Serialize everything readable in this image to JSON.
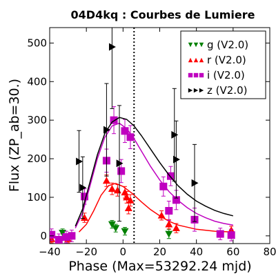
{
  "chart_data": {
    "type": "scatter",
    "title": "04D4kq : Courbes de Lumiere",
    "xlabel": "Phase (Max=53292.24 mjd)",
    "ylabel": "Flux (ZP_ab=30.)",
    "xlim": [
      -40,
      80
    ],
    "ylim": [
      -20,
      540
    ],
    "xticks": [
      -40,
      -20,
      0,
      20,
      40,
      60,
      80
    ],
    "yticks": [
      0,
      100,
      200,
      300,
      400,
      500
    ],
    "vline_x": 6,
    "legend_position": "top-right",
    "series": [
      {
        "name": "g (V2.0)",
        "color": "#008000",
        "marker": "triangle-down",
        "points": [
          {
            "x": -39,
            "y": -5,
            "err": 10
          },
          {
            "x": -33,
            "y": 8,
            "err": 10
          },
          {
            "x": -6,
            "y": 30,
            "err": 10
          },
          {
            "x": -4,
            "y": 20,
            "err": 10
          },
          {
            "x": 1,
            "y": 12,
            "err": 10
          },
          {
            "x": 25,
            "y": 5,
            "err": 12
          }
        ],
        "model": []
      },
      {
        "name": "r (V2.0)",
        "color": "#ff0000",
        "marker": "triangle-up",
        "points": [
          {
            "x": -39,
            "y": -8,
            "err": 10
          },
          {
            "x": -35,
            "y": -12,
            "err": 10
          },
          {
            "x": -30,
            "y": -8,
            "err": 10
          },
          {
            "x": -21,
            "y": 47,
            "err": 12
          },
          {
            "x": -9,
            "y": 143,
            "err": 15
          },
          {
            "x": -6,
            "y": 122,
            "err": 15
          },
          {
            "x": -3,
            "y": 118,
            "err": 15
          },
          {
            "x": 1,
            "y": 113,
            "err": 15
          },
          {
            "x": 2,
            "y": 100,
            "err": 15
          },
          {
            "x": 3,
            "y": 72,
            "err": 15
          },
          {
            "x": 4,
            "y": 92,
            "err": 15
          },
          {
            "x": 21,
            "y": 53,
            "err": 12
          },
          {
            "x": 25,
            "y": 30,
            "err": 12
          },
          {
            "x": 29,
            "y": 20,
            "err": 12
          },
          {
            "x": 59,
            "y": 15,
            "err": 10
          }
        ],
        "model": [
          {
            "x": -24,
            "y": 10
          },
          {
            "x": -20,
            "y": 30
          },
          {
            "x": -16,
            "y": 65
          },
          {
            "x": -12,
            "y": 105
          },
          {
            "x": -8,
            "y": 130
          },
          {
            "x": -4,
            "y": 136
          },
          {
            "x": 0,
            "y": 128
          },
          {
            "x": 5,
            "y": 110
          },
          {
            "x": 10,
            "y": 88
          },
          {
            "x": 15,
            "y": 68
          },
          {
            "x": 20,
            "y": 52
          },
          {
            "x": 25,
            "y": 38
          },
          {
            "x": 30,
            "y": 28
          },
          {
            "x": 40,
            "y": 17
          },
          {
            "x": 50,
            "y": 12
          },
          {
            "x": 60,
            "y": 10
          }
        ]
      },
      {
        "name": "i (V2.0)",
        "color": "#bf00bf",
        "marker": "square",
        "points": [
          {
            "x": -39,
            "y": 3,
            "err": 15
          },
          {
            "x": -35,
            "y": -10,
            "err": 15
          },
          {
            "x": -31,
            "y": -3,
            "err": 15
          },
          {
            "x": -28,
            "y": 0,
            "err": 15
          },
          {
            "x": -21,
            "y": 102,
            "err": 20
          },
          {
            "x": -9,
            "y": 195,
            "err": 30
          },
          {
            "x": -5,
            "y": 300,
            "err": 35
          },
          {
            "x": -1,
            "y": 168,
            "err": 30
          },
          {
            "x": 1,
            "y": 272,
            "err": 30
          },
          {
            "x": 4,
            "y": 256,
            "err": 30
          },
          {
            "x": 22,
            "y": 128,
            "err": 25
          },
          {
            "x": 25,
            "y": 65,
            "err": 25
          },
          {
            "x": 26,
            "y": 155,
            "err": 25
          },
          {
            "x": 29,
            "y": 93,
            "err": 25
          },
          {
            "x": 39,
            "y": 42,
            "err": 30
          },
          {
            "x": 53,
            "y": 5,
            "err": 15
          },
          {
            "x": 59,
            "y": 2,
            "err": 15
          }
        ],
        "model": [
          {
            "x": -26,
            "y": 20
          },
          {
            "x": -22,
            "y": 60
          },
          {
            "x": -18,
            "y": 130
          },
          {
            "x": -14,
            "y": 200
          },
          {
            "x": -10,
            "y": 255
          },
          {
            "x": -6,
            "y": 285
          },
          {
            "x": -2,
            "y": 292
          },
          {
            "x": 2,
            "y": 278
          },
          {
            "x": 6,
            "y": 252
          },
          {
            "x": 10,
            "y": 220
          },
          {
            "x": 15,
            "y": 180
          },
          {
            "x": 20,
            "y": 145
          },
          {
            "x": 25,
            "y": 115
          },
          {
            "x": 30,
            "y": 92
          },
          {
            "x": 35,
            "y": 73
          },
          {
            "x": 40,
            "y": 58
          },
          {
            "x": 45,
            "y": 47
          },
          {
            "x": 50,
            "y": 38
          },
          {
            "x": 55,
            "y": 32
          },
          {
            "x": 60,
            "y": 28
          }
        ]
      },
      {
        "name": "z (V2.0)",
        "color": "#000000",
        "marker": "triangle-right",
        "points": [
          {
            "x": -24,
            "y": 193,
            "err": 80
          },
          {
            "x": -22,
            "y": 125,
            "err": 80
          },
          {
            "x": -9,
            "y": 275,
            "err": 120
          },
          {
            "x": -6,
            "y": 490,
            "err": 160
          },
          {
            "x": -2,
            "y": 188,
            "err": 150
          },
          {
            "x": 28,
            "y": 262,
            "err": 120
          },
          {
            "x": 29,
            "y": 198,
            "err": 100
          },
          {
            "x": 39,
            "y": 137,
            "err": 100
          }
        ],
        "model": [
          {
            "x": -26,
            "y": 25
          },
          {
            "x": -22,
            "y": 70
          },
          {
            "x": -18,
            "y": 140
          },
          {
            "x": -14,
            "y": 210
          },
          {
            "x": -10,
            "y": 265
          },
          {
            "x": -6,
            "y": 295
          },
          {
            "x": -2,
            "y": 307
          },
          {
            "x": 2,
            "y": 302
          },
          {
            "x": 6,
            "y": 285
          },
          {
            "x": 10,
            "y": 260
          },
          {
            "x": 15,
            "y": 225
          },
          {
            "x": 20,
            "y": 190
          },
          {
            "x": 25,
            "y": 158
          },
          {
            "x": 30,
            "y": 130
          },
          {
            "x": 35,
            "y": 108
          },
          {
            "x": 40,
            "y": 90
          },
          {
            "x": 45,
            "y": 77
          },
          {
            "x": 50,
            "y": 66
          },
          {
            "x": 55,
            "y": 58
          },
          {
            "x": 60,
            "y": 52
          }
        ]
      }
    ]
  }
}
